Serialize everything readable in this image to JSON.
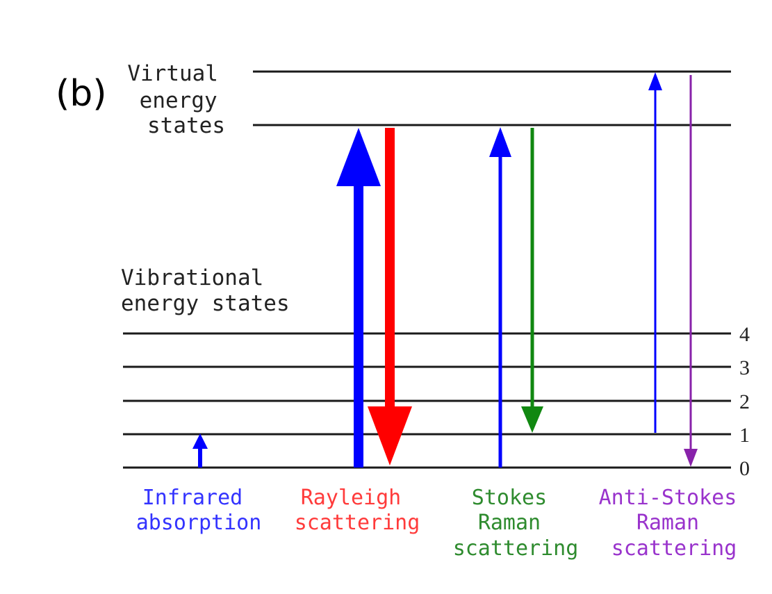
{
  "panel_label": "(b)",
  "virtual_label": [
    "Virtual",
    "energy",
    "states"
  ],
  "vibrational_label": [
    "Vibrational",
    "energy states"
  ],
  "level_numbers": [
    "4",
    "3",
    "2",
    "1",
    "0"
  ],
  "processes": {
    "infrared": {
      "lines": [
        "Infrared",
        "absorption"
      ],
      "color": "#3333ff"
    },
    "rayleigh": {
      "lines": [
        "Rayleigh",
        "scattering"
      ],
      "color": "#ff3b3b"
    },
    "stokes": {
      "lines": [
        "Stokes",
        "Raman",
        "scattering"
      ],
      "color": "#2e8b2e"
    },
    "anti_stokes": {
      "lines": [
        "Anti-Stokes",
        "Raman",
        "scattering"
      ],
      "color": "#9933cc"
    }
  },
  "colors": {
    "level_line": "#1a1a1a",
    "excitation_blue": "#0000ff",
    "rayleigh_red": "#ff0000",
    "stokes_green": "#118811",
    "anti_stokes_purple": "#8822aa"
  }
}
